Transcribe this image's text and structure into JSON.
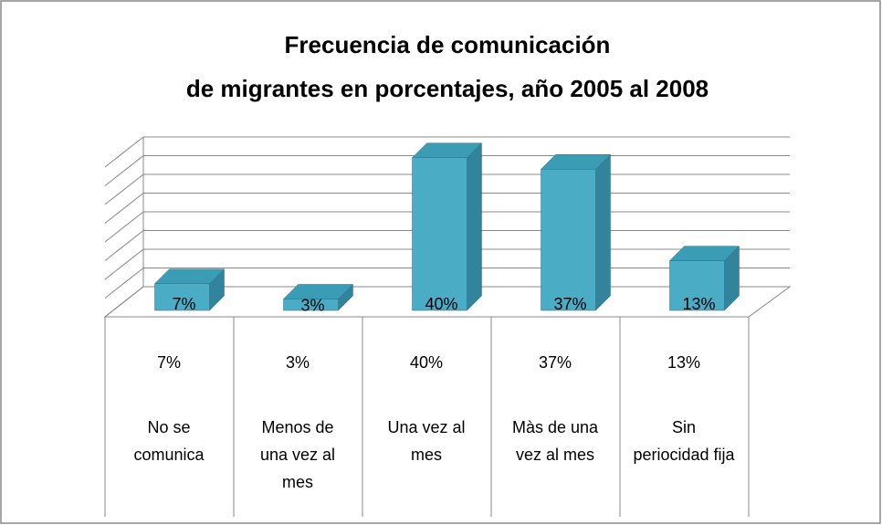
{
  "chart_data": {
    "type": "bar3d",
    "title": [
      "Frecuencia de comunicación",
      "de migrantes en porcentajes, año 2005 al 2008"
    ],
    "categories": [
      "No se comunica",
      "Menos de una vez al mes",
      "Una vez al mes",
      "Màs de una vez al mes",
      "Sin periocidad fija"
    ],
    "values": [
      7,
      3,
      40,
      37,
      13
    ],
    "value_labels": [
      "7%",
      "3%",
      "40%",
      "37%",
      "13%"
    ],
    "color": "#4bacc6",
    "ylim": [
      0,
      40
    ],
    "yticks": [
      0,
      5,
      10,
      15,
      20,
      25,
      30,
      35,
      40
    ],
    "grid": true
  }
}
